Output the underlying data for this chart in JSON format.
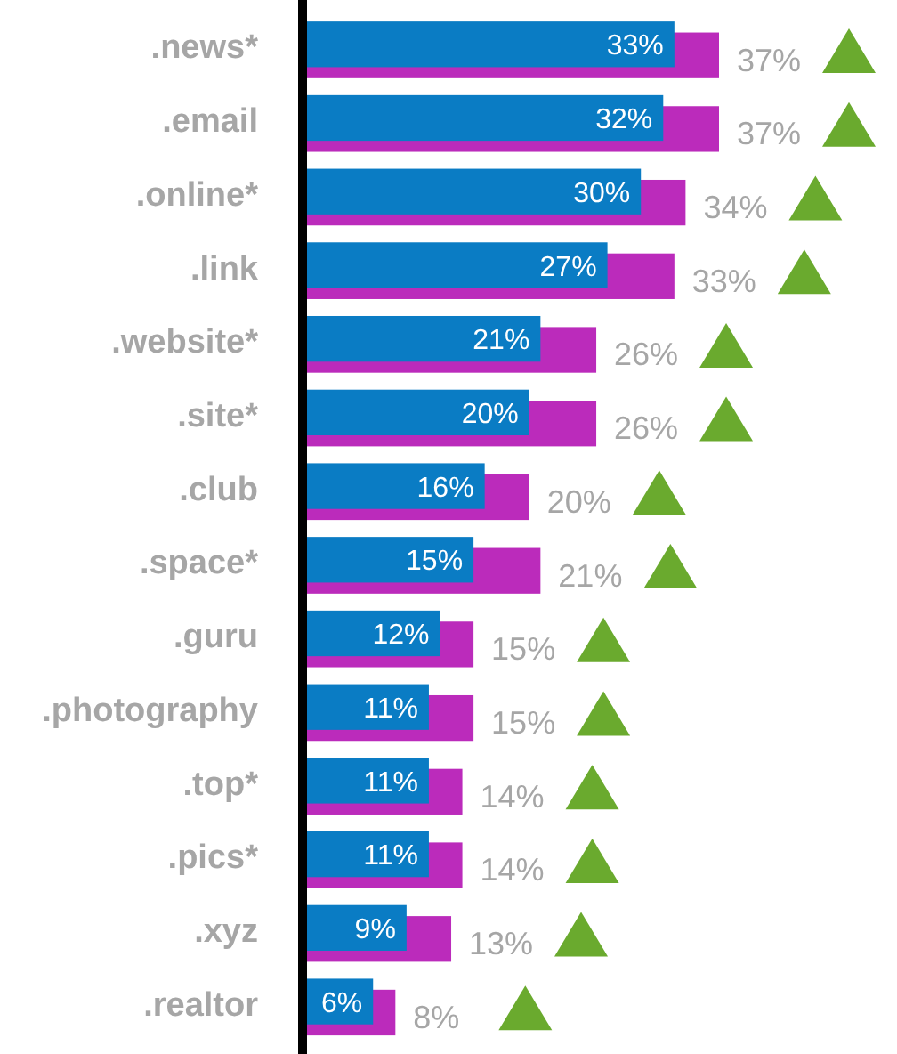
{
  "chart_data": {
    "type": "bar",
    "orientation": "horizontal",
    "categories": [
      ".news*",
      ".email",
      ".online*",
      ".link",
      ".website*",
      ".site*",
      ".club",
      ".space*",
      ".guru",
      ".photography",
      ".top*",
      ".pics*",
      ".xyz",
      ".realtor"
    ],
    "series": [
      {
        "color": "#bb2bbb",
        "values": [
          37,
          37,
          34,
          33,
          26,
          26,
          20,
          21,
          15,
          15,
          14,
          14,
          13,
          8
        ],
        "value_labels": [
          "37%",
          "37%",
          "34%",
          "33%",
          "26%",
          "26%",
          "20%",
          "21%",
          "15%",
          "15%",
          "14%",
          "14%",
          "13%",
          "8%"
        ]
      },
      {
        "color": "#0a7cc4",
        "values": [
          33,
          32,
          30,
          27,
          21,
          20,
          16,
          15,
          12,
          11,
          11,
          11,
          9,
          6
        ],
        "value_labels": [
          "33%",
          "32%",
          "30%",
          "27%",
          "21%",
          "20%",
          "16%",
          "15%",
          "12%",
          "11%",
          "11%",
          "11%",
          "9%",
          "6%"
        ]
      }
    ]
  }
}
